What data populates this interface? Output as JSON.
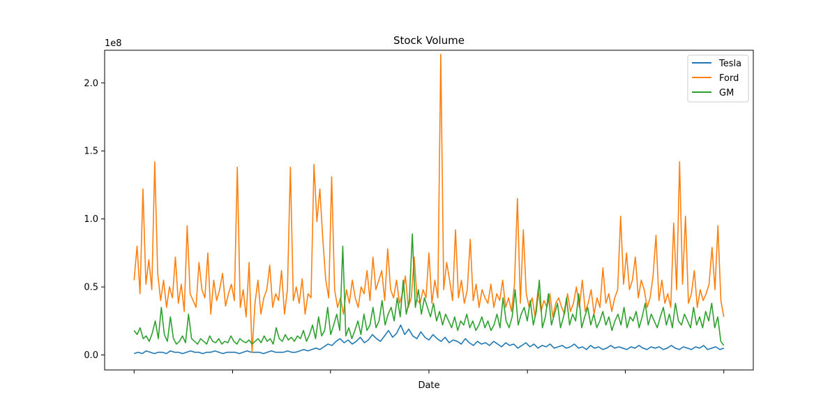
{
  "chart_data": {
    "type": "line",
    "title": "Stock Volume",
    "xlabel": "Date",
    "ylabel": "",
    "y_offset_label": "1e8",
    "ylim": [
      -0.11,
      2.24
    ],
    "xlim": [
      -0.05,
      1.05
    ],
    "y_ticks": [
      0.0,
      0.5,
      1.0,
      1.5,
      2.0
    ],
    "y_tick_labels": [
      "0.0",
      "0.5",
      "1.0",
      "1.5",
      "2.0"
    ],
    "x_ticks": [
      0.0,
      0.167,
      0.333,
      0.5,
      0.667,
      0.833,
      1.0
    ],
    "x_tick_labels": [
      "",
      "",
      "",
      "",
      "",
      "",
      ""
    ],
    "grid": false,
    "legend": "top-right",
    "series": [
      {
        "name": "Tesla",
        "color": "#1f77b4",
        "values": [
          0.01,
          0.02,
          0.01,
          0.03,
          0.02,
          0.01,
          0.02,
          0.02,
          0.01,
          0.03,
          0.02,
          0.02,
          0.01,
          0.02,
          0.03,
          0.02,
          0.02,
          0.01,
          0.02,
          0.02,
          0.03,
          0.02,
          0.01,
          0.02,
          0.02,
          0.02,
          0.01,
          0.02,
          0.03,
          0.02,
          0.02,
          0.02,
          0.01,
          0.02,
          0.03,
          0.02,
          0.02,
          0.02,
          0.03,
          0.02,
          0.02,
          0.03,
          0.04,
          0.03,
          0.04,
          0.05,
          0.04,
          0.06,
          0.08,
          0.07,
          0.1,
          0.12,
          0.09,
          0.11,
          0.08,
          0.1,
          0.13,
          0.09,
          0.11,
          0.15,
          0.12,
          0.1,
          0.14,
          0.18,
          0.13,
          0.16,
          0.22,
          0.15,
          0.19,
          0.14,
          0.12,
          0.17,
          0.13,
          0.11,
          0.15,
          0.12,
          0.1,
          0.13,
          0.09,
          0.11,
          0.1,
          0.08,
          0.12,
          0.09,
          0.07,
          0.1,
          0.08,
          0.09,
          0.07,
          0.1,
          0.08,
          0.06,
          0.09,
          0.07,
          0.08,
          0.05,
          0.07,
          0.09,
          0.06,
          0.08,
          0.05,
          0.07,
          0.06,
          0.08,
          0.05,
          0.06,
          0.07,
          0.05,
          0.06,
          0.08,
          0.05,
          0.06,
          0.04,
          0.07,
          0.05,
          0.06,
          0.04,
          0.05,
          0.07,
          0.05,
          0.06,
          0.05,
          0.04,
          0.06,
          0.05,
          0.07,
          0.05,
          0.04,
          0.06,
          0.05,
          0.06,
          0.04,
          0.05,
          0.07,
          0.05,
          0.04,
          0.06,
          0.05,
          0.04,
          0.06,
          0.05,
          0.07,
          0.04,
          0.05,
          0.06,
          0.04,
          0.05
        ]
      },
      {
        "name": "Ford",
        "color": "#ff7f0e",
        "values": [
          0.55,
          0.8,
          0.45,
          1.22,
          0.52,
          0.7,
          0.48,
          1.42,
          0.6,
          0.4,
          0.55,
          0.35,
          0.5,
          0.42,
          0.72,
          0.38,
          0.52,
          0.32,
          0.95,
          0.45,
          0.4,
          0.35,
          0.68,
          0.48,
          0.42,
          0.75,
          0.3,
          0.55,
          0.4,
          0.48,
          0.6,
          0.36,
          0.45,
          0.52,
          0.4,
          1.38,
          0.35,
          0.48,
          0.28,
          0.68,
          0.02,
          0.38,
          0.55,
          0.3,
          0.42,
          0.48,
          0.66,
          0.35,
          0.45,
          0.4,
          0.62,
          0.3,
          0.48,
          1.38,
          0.4,
          0.5,
          0.38,
          0.56,
          0.3,
          0.45,
          0.42,
          1.4,
          0.98,
          1.22,
          0.85,
          0.55,
          0.42,
          1.31,
          0.48,
          0.35,
          0.42,
          0.3,
          0.48,
          0.38,
          0.55,
          0.42,
          0.35,
          0.5,
          0.45,
          0.62,
          0.4,
          0.72,
          0.48,
          0.55,
          0.62,
          0.4,
          0.78,
          0.48,
          0.42,
          0.55,
          0.38,
          0.45,
          0.58,
          0.35,
          0.42,
          0.72,
          0.4,
          0.38,
          0.48,
          0.42,
          0.75,
          0.38,
          0.55,
          0.42,
          2.21,
          0.48,
          0.68,
          0.55,
          0.4,
          0.92,
          0.42,
          0.55,
          0.38,
          0.48,
          0.85,
          0.4,
          0.52,
          0.35,
          0.48,
          0.42,
          0.38,
          0.52,
          0.35,
          0.45,
          0.4,
          0.55,
          0.35,
          0.42,
          0.32,
          0.52,
          1.15,
          0.38,
          0.92,
          0.45,
          0.35,
          0.42,
          0.28,
          0.48,
          0.32,
          0.4,
          0.35,
          0.45,
          0.28,
          0.38,
          0.42,
          0.35,
          0.3,
          0.45,
          0.32,
          0.38,
          0.5,
          0.35,
          0.55,
          0.32,
          0.38,
          0.48,
          0.3,
          0.42,
          0.35,
          0.64,
          0.38,
          0.45,
          0.32,
          0.42,
          0.48,
          1.02,
          0.52,
          0.75,
          0.48,
          0.55,
          0.72,
          0.42,
          0.55,
          0.48,
          0.35,
          0.42,
          0.58,
          0.88,
          0.4,
          0.55,
          0.38,
          0.45,
          0.35,
          0.97,
          0.48,
          1.42,
          0.52,
          1.02,
          0.38,
          0.45,
          0.62,
          0.35,
          0.48,
          0.4,
          0.45,
          0.52,
          0.79,
          0.48,
          0.95,
          0.4,
          0.28
        ]
      },
      {
        "name": "GM",
        "color": "#2ca02c",
        "values": [
          0.18,
          0.15,
          0.2,
          0.12,
          0.14,
          0.1,
          0.16,
          0.25,
          0.12,
          0.35,
          0.15,
          0.1,
          0.28,
          0.12,
          0.08,
          0.1,
          0.14,
          0.09,
          0.3,
          0.12,
          0.1,
          0.08,
          0.12,
          0.1,
          0.08,
          0.14,
          0.1,
          0.09,
          0.12,
          0.08,
          0.1,
          0.09,
          0.14,
          0.1,
          0.08,
          0.12,
          0.1,
          0.09,
          0.11,
          0.08,
          0.1,
          0.12,
          0.09,
          0.14,
          0.1,
          0.12,
          0.08,
          0.2,
          0.12,
          0.1,
          0.15,
          0.11,
          0.13,
          0.1,
          0.14,
          0.12,
          0.18,
          0.1,
          0.15,
          0.22,
          0.12,
          0.28,
          0.14,
          0.18,
          0.35,
          0.15,
          0.22,
          0.3,
          0.18,
          0.8,
          0.14,
          0.2,
          0.12,
          0.18,
          0.25,
          0.15,
          0.3,
          0.18,
          0.22,
          0.35,
          0.2,
          0.25,
          0.4,
          0.22,
          0.3,
          0.35,
          0.25,
          0.42,
          0.28,
          0.55,
          0.3,
          0.4,
          0.89,
          0.35,
          0.48,
          0.3,
          0.42,
          0.35,
          0.28,
          0.38,
          0.25,
          0.32,
          0.22,
          0.3,
          0.25,
          0.2,
          0.28,
          0.18,
          0.25,
          0.22,
          0.3,
          0.2,
          0.25,
          0.18,
          0.22,
          0.28,
          0.2,
          0.25,
          0.18,
          0.22,
          0.3,
          0.2,
          0.42,
          0.25,
          0.2,
          0.28,
          0.48,
          0.22,
          0.3,
          0.35,
          0.25,
          0.4,
          0.22,
          0.32,
          0.55,
          0.2,
          0.28,
          0.45,
          0.22,
          0.3,
          0.38,
          0.2,
          0.28,
          0.42,
          0.22,
          0.3,
          0.25,
          0.45,
          0.2,
          0.28,
          0.35,
          0.22,
          0.3,
          0.2,
          0.25,
          0.32,
          0.22,
          0.28,
          0.18,
          0.25,
          0.3,
          0.22,
          0.35,
          0.2,
          0.28,
          0.25,
          0.32,
          0.2,
          0.28,
          0.38,
          0.22,
          0.3,
          0.25,
          0.2,
          0.28,
          0.35,
          0.22,
          0.3,
          0.2,
          0.38,
          0.25,
          0.22,
          0.3,
          0.25,
          0.2,
          0.35,
          0.22,
          0.28,
          0.2,
          0.32,
          0.25,
          0.38,
          0.2,
          0.28,
          0.1,
          0.07
        ]
      }
    ]
  }
}
